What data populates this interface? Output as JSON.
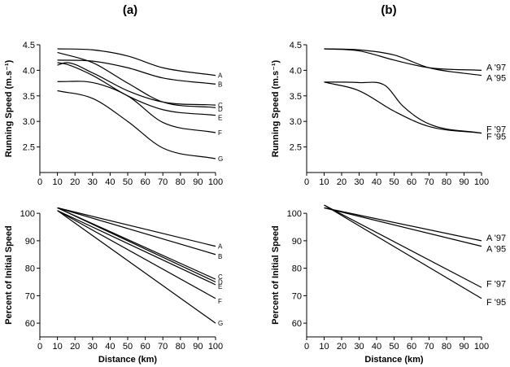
{
  "panel_labels": [
    "(a)",
    "(b)"
  ],
  "chart_data": [
    {
      "type": "line",
      "panel": "(a)",
      "ylabel": "Running Speed (m.s⁻¹)",
      "xlabel": "",
      "xlim": [
        0,
        100
      ],
      "ylim": [
        2.0,
        4.5
      ],
      "xticks": [
        0,
        10,
        20,
        30,
        40,
        50,
        60,
        70,
        80,
        90,
        100
      ],
      "yticks": [
        2.5,
        3.0,
        3.5,
        4.0,
        4.5
      ],
      "ytick_labels": [
        "2.5",
        "3.0",
        "3.5",
        "4.0",
        "4.5"
      ],
      "series": [
        {
          "name": "A",
          "x": [
            10,
            30,
            50,
            70,
            100
          ],
          "y": [
            4.42,
            4.4,
            4.28,
            4.05,
            3.9
          ]
        },
        {
          "name": "B",
          "x": [
            10,
            30,
            50,
            70,
            100
          ],
          "y": [
            4.2,
            4.18,
            4.05,
            3.85,
            3.73
          ]
        },
        {
          "name": "C",
          "x": [
            10,
            15,
            30,
            50,
            70,
            100
          ],
          "y": [
            4.1,
            4.15,
            3.95,
            3.6,
            3.38,
            3.32
          ]
        },
        {
          "name": "D",
          "x": [
            10,
            30,
            50,
            70,
            100
          ],
          "y": [
            4.35,
            4.15,
            3.75,
            3.38,
            3.27
          ]
        },
        {
          "name": "E",
          "x": [
            10,
            15,
            30,
            50,
            70,
            100
          ],
          "y": [
            4.15,
            4.12,
            3.9,
            3.5,
            3.23,
            3.12
          ]
        },
        {
          "name": "F",
          "x": [
            10,
            30,
            50,
            70,
            100
          ],
          "y": [
            3.78,
            3.76,
            3.5,
            2.98,
            2.78
          ]
        },
        {
          "name": "G",
          "x": [
            10,
            30,
            50,
            70,
            100
          ],
          "y": [
            3.6,
            3.45,
            3.0,
            2.48,
            2.27
          ]
        }
      ]
    },
    {
      "type": "line",
      "panel": "(b)",
      "ylabel": "Running Speed (m.s⁻¹)",
      "xlabel": "",
      "xlim": [
        0,
        100
      ],
      "ylim": [
        2.0,
        4.5
      ],
      "xticks": [
        0,
        10,
        20,
        30,
        40,
        50,
        60,
        70,
        80,
        90,
        100
      ],
      "yticks": [
        2.5,
        3.0,
        3.5,
        4.0,
        4.5
      ],
      "ytick_labels": [
        "2.5",
        "3.0",
        "3.5",
        "4.0",
        "4.5"
      ],
      "series": [
        {
          "name": "A '97",
          "x": [
            10,
            30,
            50,
            70,
            100
          ],
          "y": [
            4.42,
            4.38,
            4.2,
            4.05,
            4.0
          ]
        },
        {
          "name": "A '95",
          "x": [
            10,
            30,
            50,
            70,
            100
          ],
          "y": [
            4.42,
            4.4,
            4.3,
            4.05,
            3.9
          ]
        },
        {
          "name": "F '97",
          "x": [
            10,
            30,
            45,
            55,
            70,
            100
          ],
          "y": [
            3.77,
            3.76,
            3.7,
            3.3,
            2.95,
            2.77
          ]
        },
        {
          "name": "F '95",
          "x": [
            10,
            30,
            50,
            70,
            100
          ],
          "y": [
            3.77,
            3.6,
            3.2,
            2.9,
            2.77
          ]
        }
      ]
    },
    {
      "type": "line",
      "panel": "(a)",
      "ylabel": "Percent of Initial Speed",
      "xlabel": "Distance (km)",
      "xlim": [
        0,
        100
      ],
      "ylim": [
        55,
        103
      ],
      "xticks": [
        0,
        10,
        20,
        30,
        40,
        50,
        60,
        70,
        80,
        90,
        100
      ],
      "yticks": [
        60,
        70,
        80,
        90,
        100
      ],
      "ytick_labels": [
        "60",
        "70",
        "80",
        "90",
        "100"
      ],
      "series": [
        {
          "name": "A",
          "x": [
            10,
            100
          ],
          "y": [
            102,
            88
          ]
        },
        {
          "name": "B",
          "x": [
            10,
            100
          ],
          "y": [
            102,
            85
          ]
        },
        {
          "name": "C",
          "x": [
            10,
            100
          ],
          "y": [
            102,
            76
          ]
        },
        {
          "name": "D",
          "x": [
            10,
            100
          ],
          "y": [
            102,
            75
          ]
        },
        {
          "name": "E",
          "x": [
            10,
            100
          ],
          "y": [
            101,
            74
          ]
        },
        {
          "name": "F",
          "x": [
            10,
            100
          ],
          "y": [
            101,
            69
          ]
        },
        {
          "name": "G",
          "x": [
            10,
            100
          ],
          "y": [
            101,
            60
          ]
        }
      ]
    },
    {
      "type": "line",
      "panel": "(b)",
      "ylabel": "Percent of Initial Speed",
      "xlabel": "Distance (km)",
      "xlim": [
        0,
        100
      ],
      "ylim": [
        55,
        103
      ],
      "xticks": [
        0,
        10,
        20,
        30,
        40,
        50,
        60,
        70,
        80,
        90,
        100
      ],
      "yticks": [
        60,
        70,
        80,
        90,
        100
      ],
      "ytick_labels": [
        "60",
        "70",
        "80",
        "90",
        "100"
      ],
      "series": [
        {
          "name": "A '97",
          "x": [
            10,
            100
          ],
          "y": [
            102,
            90
          ]
        },
        {
          "name": "A '95",
          "x": [
            10,
            100
          ],
          "y": [
            102,
            88
          ]
        },
        {
          "name": "F '97",
          "x": [
            10,
            100
          ],
          "y": [
            103,
            73
          ]
        },
        {
          "name": "F '95",
          "x": [
            10,
            100
          ],
          "y": [
            103,
            69
          ]
        }
      ]
    }
  ]
}
